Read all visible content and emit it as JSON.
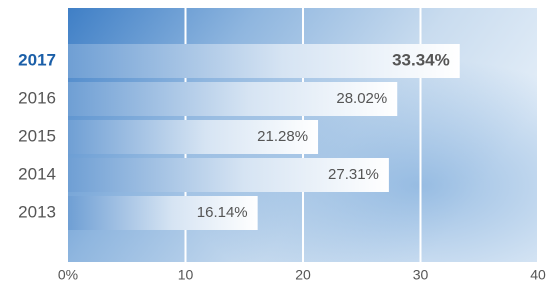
{
  "chart_data": {
    "type": "bar",
    "orientation": "horizontal",
    "categories": [
      "2017",
      "2016",
      "2015",
      "2014",
      "2013"
    ],
    "values": [
      33.34,
      28.02,
      21.28,
      27.31,
      16.14
    ],
    "value_labels": [
      "33.34%",
      "28.02%",
      "21.28%",
      "27.31%",
      "16.14%"
    ],
    "xlim": [
      0,
      40
    ],
    "xticks": [
      {
        "value": 0,
        "label": "0%"
      },
      10,
      20,
      30,
      40
    ],
    "grid": true,
    "highlight_index": 0,
    "highlight_color": "#1b5fa8",
    "color": "#ffffff"
  }
}
